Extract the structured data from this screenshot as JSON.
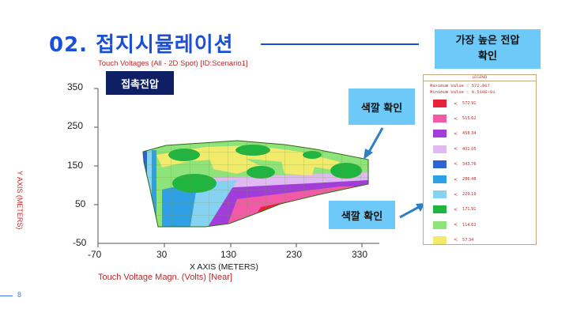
{
  "slide": {
    "title": "02. 접지시뮬레이션",
    "page_number": "8"
  },
  "plot": {
    "title": "Touch Voltages (All - 2D Spot) [ID:Scenario1]",
    "badge": "접촉전압",
    "x_axis_label": "X AXIS  (METERS)",
    "y_axis_label": "Y AXIS (METERS)",
    "bottom_label": "Touch Voltage Magn. (Volts) [Near]",
    "y_ticks": [
      "350",
      "250",
      "150",
      "50",
      "-50"
    ],
    "x_ticks": [
      "-70",
      "30",
      "130",
      "230",
      "330"
    ]
  },
  "callouts": {
    "top": "가장 높은 전압\n확인",
    "mid": "색깔 확인",
    "low": "색깔 확인"
  },
  "legend": {
    "heading": "LEGEND",
    "max_line": "Maximum Value :   572.907",
    "min_line": "Minimum Value :   0.510E-01",
    "lt_symbol": "<",
    "items": [
      {
        "value": "572.91",
        "color": "#e8213b"
      },
      {
        "value": "515.62",
        "color": "#f25aa8"
      },
      {
        "value": "458.34",
        "color": "#a23cdb"
      },
      {
        "value": "401.05",
        "color": "#e0b8f2"
      },
      {
        "value": "343.76",
        "color": "#2f63d1"
      },
      {
        "value": "286.48",
        "color": "#2f9fe6"
      },
      {
        "value": "229.19",
        "color": "#86d2f2"
      },
      {
        "value": "171.91",
        "color": "#1fb540"
      },
      {
        "value": "114.62",
        "color": "#8ee37a"
      },
      {
        "value": "57.34",
        "color": "#f2ea6b"
      }
    ]
  }
}
